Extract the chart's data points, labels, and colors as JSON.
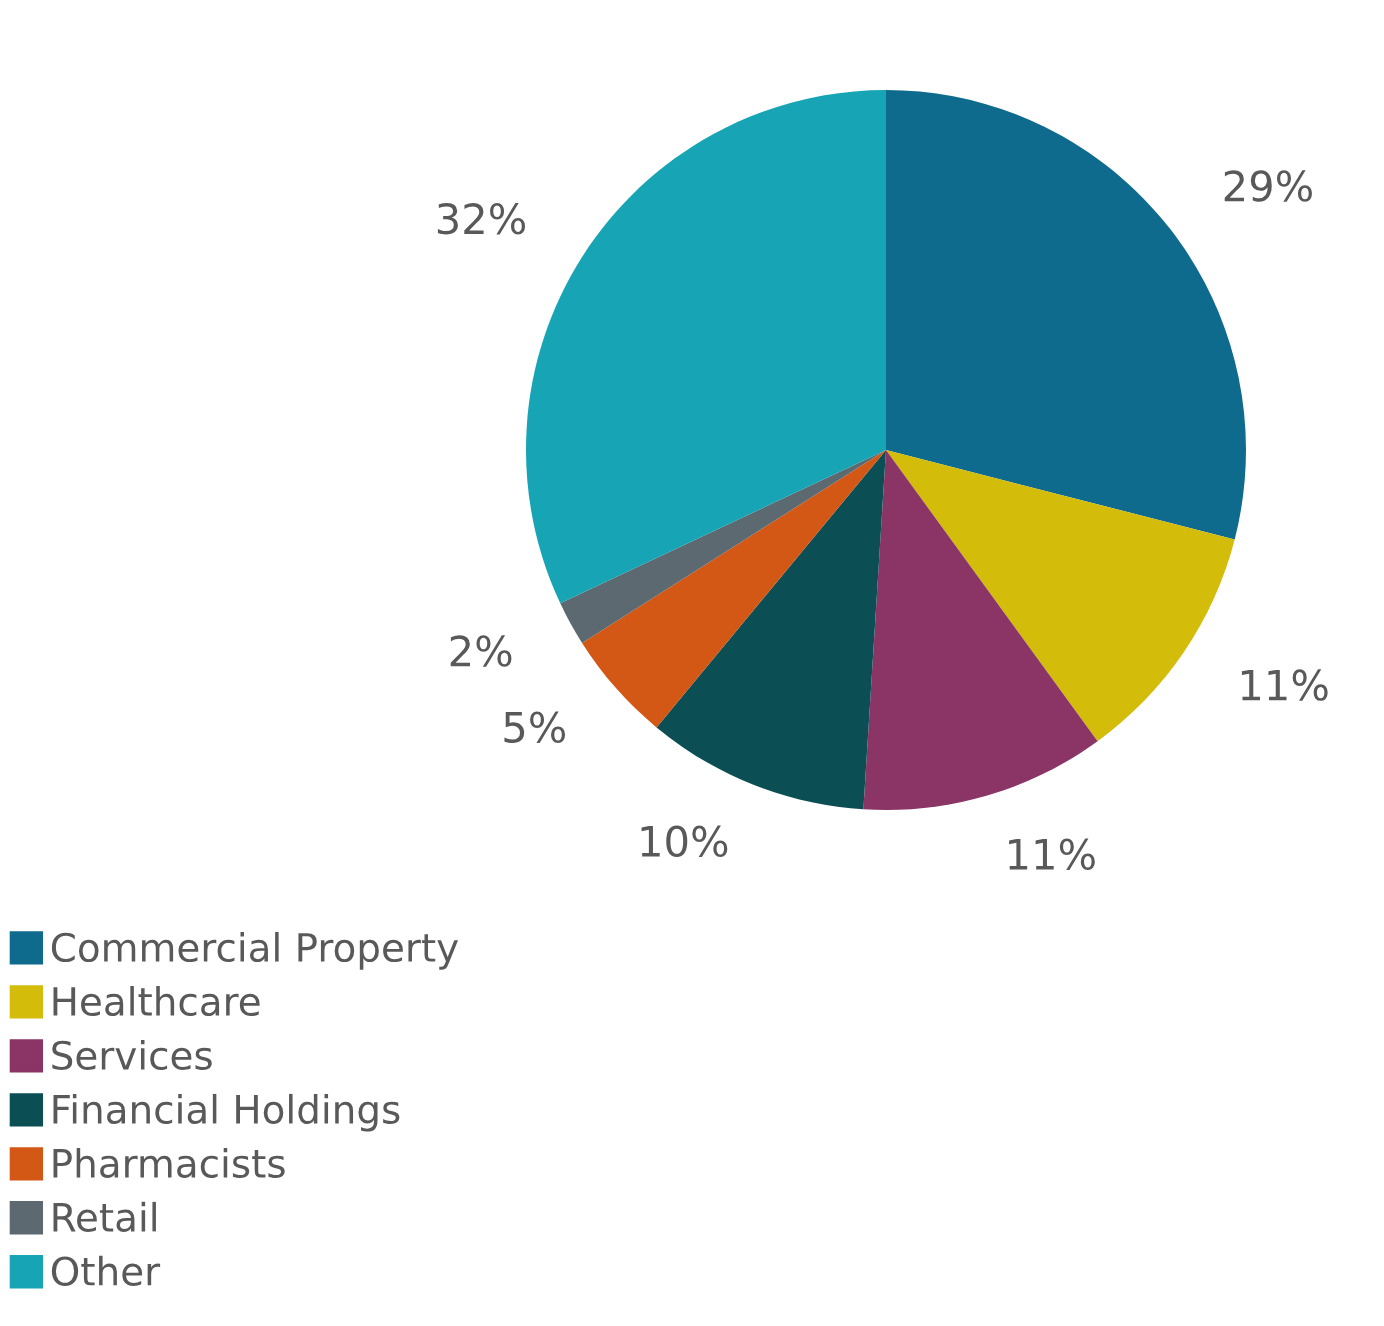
{
  "chart_data": {
    "type": "pie",
    "categories": [
      "Commercial Property",
      "Healthcare",
      "Services",
      "Financial Holdings",
      "Pharmacists",
      "Retail",
      "Other"
    ],
    "values": [
      29,
      11,
      11,
      10,
      5,
      2,
      32
    ],
    "colors": [
      "#0e6b8e",
      "#d4bc0a",
      "#8a3566",
      "#0b4f55",
      "#d35715",
      "#5c6970",
      "#17a4b4"
    ],
    "value_labels": [
      "29%",
      "11%",
      "11%",
      "10%",
      "5%",
      "2%",
      "32%"
    ],
    "legend": "bottom left"
  }
}
